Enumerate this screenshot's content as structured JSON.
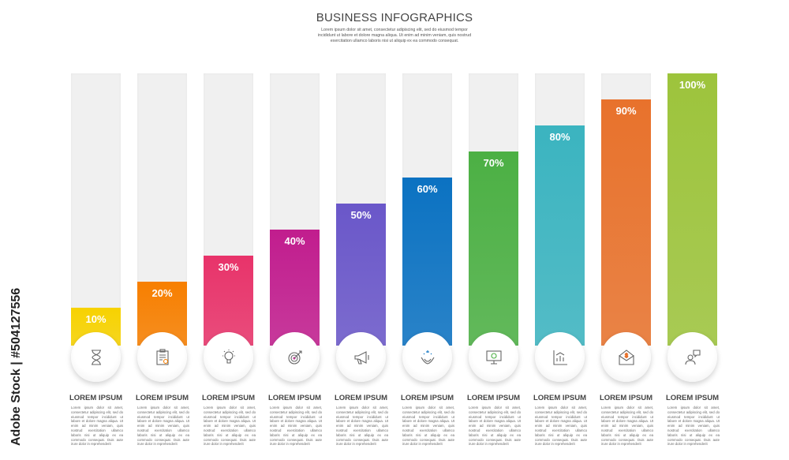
{
  "header": {
    "title": "BUSINESS INFOGRAPHICS",
    "subtitle": "Lorem ipsum dolor sit amet, consectetur adipiscing elit, sed do eiusmod tempor incididunt ut labore et dolore magna aliqua. Ut enim ad minim veniam, quis nostrud exercitation ullamco laboris nisi ut aliquip ex ea commodo consequat."
  },
  "watermark": "Adobe Stock | #504127556",
  "chart_data": {
    "type": "bar",
    "title": "BUSINESS INFOGRAPHICS",
    "ylim": [
      0,
      100
    ],
    "categories": [
      "LOREM IPSUM",
      "LOREM IPSUM",
      "LOREM IPSUM",
      "LOREM IPSUM",
      "LOREM IPSUM",
      "LOREM IPSUM",
      "LOREM IPSUM",
      "LOREM IPSUM",
      "LOREM IPSUM",
      "LOREM IPSUM"
    ],
    "values": [
      10,
      20,
      30,
      40,
      50,
      60,
      70,
      80,
      90,
      100
    ],
    "labels": [
      "10%",
      "20%",
      "30%",
      "40%",
      "50%",
      "60%",
      "70%",
      "80%",
      "90%",
      "100%"
    ],
    "colors": [
      "#f7d200",
      "#f77f00",
      "#e8336a",
      "#c11d8e",
      "#6a57c9",
      "#0b72c2",
      "#4cb044",
      "#3bb4c0",
      "#e8722c",
      "#9dc43c"
    ],
    "icons": [
      "hourglass-icon",
      "clipboard-icon",
      "lightbulb-icon",
      "target-icon",
      "megaphone-icon",
      "hands-icon",
      "monitor-dollar-icon",
      "bar-chart-icon",
      "envelope-dollar-icon",
      "chat-people-icon"
    ],
    "description": "Lorem ipsum dolor sit amet, consectetur adipiscing elit, sed do eiusmod tempor incididunt ut labore et dolore magna aliqua. Ut enim ad minim veniam, quis nostrud exercitation ullamco laboris nisi ut aliquip ex ea commodo consequat. Duis aute irure dolor in reprehenderit"
  }
}
